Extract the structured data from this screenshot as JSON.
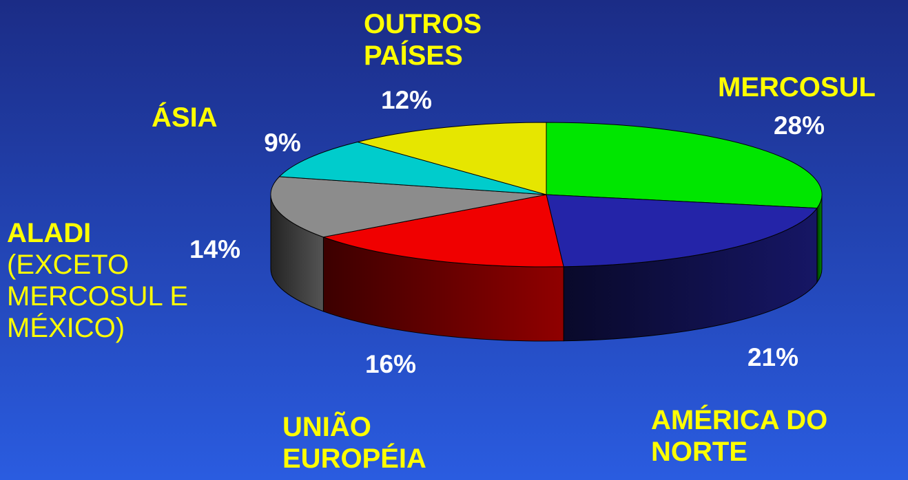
{
  "chart_data": {
    "type": "pie",
    "categories": [
      "MERCOSUL",
      "AMÉRICA DO NORTE",
      "UNIÃO EUROPÉIA",
      "ALADI (EXCETO MERCOSUL E MÉXICO)",
      "ÁSIA",
      "OUTROS PAÍSES"
    ],
    "values": [
      28,
      21,
      16,
      14,
      9,
      12
    ],
    "value_labels": [
      "28%",
      "21%",
      "16%",
      "14%",
      "9%",
      "12%"
    ],
    "colors": [
      "#00e600",
      "#2424a8",
      "#f00000",
      "#8c8c8c",
      "#00cccc",
      "#e6e600"
    ]
  }
}
